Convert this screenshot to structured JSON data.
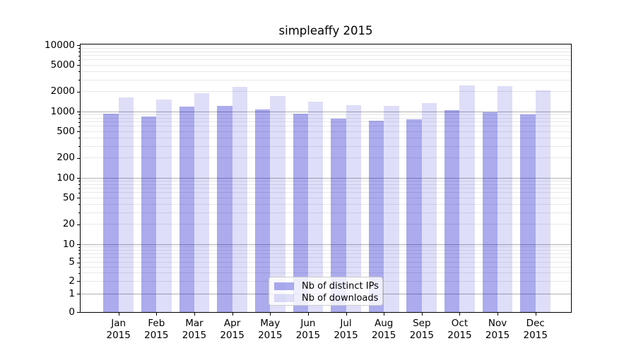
{
  "title": "simpleaffy 2015",
  "legend": {
    "items": [
      {
        "label": "Nb of distinct IPs",
        "color": "#aaaaee",
        "base_color": "#0000c8",
        "alpha": 0.33
      },
      {
        "label": "Nb of downloads",
        "color": "#dedef8",
        "base_color": "#0000c8",
        "alpha": 0.13
      }
    ]
  },
  "y_axis": {
    "tick_labels": [
      "10000",
      "5000",
      "2000",
      "1000",
      "500",
      "200",
      "100",
      "50",
      "20",
      "10",
      "5",
      "2",
      "1",
      "0"
    ],
    "tick_values": [
      10000,
      5000,
      2000,
      1000,
      500,
      200,
      100,
      50,
      20,
      10,
      5,
      2,
      1,
      0
    ]
  },
  "chart_data": {
    "type": "bar",
    "title": "simpleaffy 2015",
    "categories": [
      "Jan 2015",
      "Feb 2015",
      "Mar 2015",
      "Apr 2015",
      "May 2015",
      "Jun 2015",
      "Jul 2015",
      "Aug 2015",
      "Sep 2015",
      "Oct 2015",
      "Nov 2015",
      "Dec 2015"
    ],
    "series": [
      {
        "name": "Nb of distinct IPs",
        "values": [
          930,
          840,
          1180,
          1230,
          1080,
          920,
          780,
          720,
          760,
          1060,
          970,
          900
        ]
      },
      {
        "name": "Nb of downloads",
        "values": [
          1640,
          1530,
          1890,
          2360,
          1700,
          1420,
          1250,
          1220,
          1340,
          2450,
          2400,
          2070
        ]
      }
    ],
    "y_scale": "symlog",
    "y_ticks": [
      0,
      1,
      2,
      5,
      10,
      20,
      50,
      100,
      200,
      500,
      1000,
      2000,
      5000,
      10000
    ],
    "ylim": [
      0,
      10000
    ],
    "grid": "both-horizontal",
    "legend_position": "lower center",
    "grid_major_color": "#b0b0b0",
    "grid_minor_color": "#e8e8e8"
  }
}
